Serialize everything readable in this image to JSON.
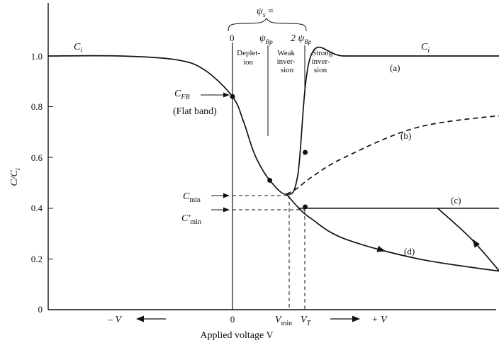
{
  "chart_data": {
    "type": "line",
    "title": "",
    "ylabel": "C/C",
    "ylabel_sub": "i",
    "xlabel": "Applied voltage V",
    "ylim": [
      0,
      1.2
    ],
    "yticks": [
      "0",
      "0.2",
      "0.4",
      "0.6",
      "0.8",
      "1.0"
    ],
    "ytick_values": [
      0,
      0.2,
      0.4,
      0.6,
      0.8,
      1.0
    ],
    "x_markers": {
      "zero": "0",
      "vmin": "V",
      "vmin_sub": "min",
      "vt": "V",
      "vt_sub": "T",
      "neg": "– V",
      "pos": "+ V"
    },
    "psi_header": {
      "psi": "ψ",
      "psi_sub": "s",
      "equals": " =",
      "zero": "0",
      "psi_bp": "ψ",
      "psi_bp_sub": "Bp",
      "two_psi_bp": "2 ψ",
      "two_psi_bp_sub": "Bp"
    },
    "regions": {
      "depletion": [
        "Deplet-",
        "ion"
      ],
      "weak": [
        "Weak",
        "inver-",
        "sion"
      ],
      "strong": [
        "Strong",
        "inver-",
        "sion"
      ]
    },
    "annotations": {
      "ci_left": "C",
      "ci_left_sub": "i",
      "ci_right": "C",
      "ci_right_sub": "i",
      "cfb": "C",
      "cfb_sub": "FB",
      "flat_band": "(Flat band)",
      "cmin": "C",
      "cmin_sub": "min",
      "cmin_prime": "C′",
      "cmin_prime_sub": "min"
    },
    "x": [
      -3.3,
      -2.0,
      -1.0,
      -0.5,
      0,
      0.3,
      0.6,
      1.0,
      1.45,
      1.75,
      2.1,
      3.0,
      5.0,
      7.5
    ],
    "series": [
      {
        "name": "(a)",
        "dash": false,
        "values": [
          1.0,
          1.0,
          0.985,
          0.945,
          0.84,
          0.74,
          0.61,
          0.51,
          0.455,
          0.53,
          1.0,
          1.0,
          1.0,
          1.0
        ]
      },
      {
        "name": "(b)",
        "dash": true,
        "values": [
          null,
          null,
          null,
          null,
          null,
          null,
          null,
          null,
          0.455,
          0.48,
          0.52,
          0.6,
          0.72,
          0.77
        ]
      },
      {
        "name": "(c)",
        "dash": false,
        "values": [
          null,
          null,
          null,
          null,
          null,
          null,
          null,
          null,
          null,
          0.4,
          0.4,
          0.4,
          0.4,
          0.4
        ]
      },
      {
        "name": "(d)",
        "dash": false,
        "values": [
          null,
          null,
          null,
          null,
          null,
          null,
          null,
          null,
          0.455,
          0.405,
          0.36,
          0.28,
          0.2,
          0.145
        ]
      }
    ],
    "return_path": {
      "x": [
        7.2,
        6.4,
        5.5
      ],
      "values": [
        0.145,
        0.28,
        0.4
      ]
    },
    "points": [
      {
        "x": 0,
        "y": 0.84
      },
      {
        "x": 1.0,
        "y": 0.51
      },
      {
        "x": 1.95,
        "y": 0.62
      },
      {
        "x": 1.95,
        "y": 0.405
      }
    ],
    "grid": false
  }
}
